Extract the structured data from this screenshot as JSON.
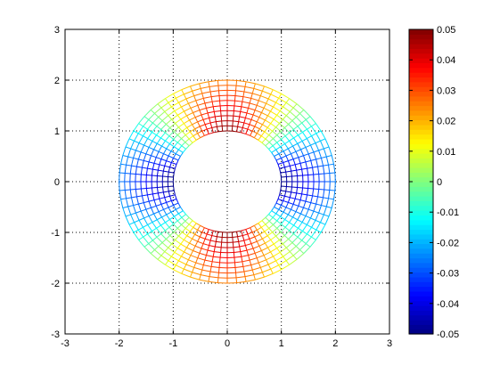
{
  "chart_data": {
    "type": "heatmap",
    "description_mesh": "annulus mesh",
    "title": "",
    "xlabel": "",
    "ylabel": "",
    "xlim": [
      -3,
      3
    ],
    "ylim": [
      -3,
      3
    ],
    "xticks": [
      "-3",
      "-2",
      "-1",
      "0",
      "1",
      "2",
      "3"
    ],
    "yticks": [
      "-3",
      "-2",
      "-1",
      "0",
      "1",
      "2",
      "3"
    ],
    "grid": true,
    "mesh": {
      "inner_radius": 1,
      "outer_radius": 2,
      "radial_lines": 72,
      "circular_lines": 11,
      "field": "-0.05*cos(2*theta)*(1 - (r-1)*0.5)",
      "value_range": [
        -0.05,
        0.05
      ]
    },
    "colorbar": {
      "colormap": "jet",
      "clim": [
        -0.05,
        0.05
      ],
      "tick_values": [
        0.05,
        0.04,
        0.03,
        0.02,
        0.01,
        0,
        -0.01,
        -0.02,
        -0.03,
        -0.04,
        -0.05
      ],
      "tick_labels": [
        "0.05",
        "0.04",
        "0.03",
        "0.02",
        "0.01",
        "0",
        "-0.01",
        "-0.02",
        "-0.03",
        "-0.04",
        "-0.05"
      ]
    },
    "colors": {
      "axes_background": "#ffffff",
      "grid": "#000000"
    }
  }
}
